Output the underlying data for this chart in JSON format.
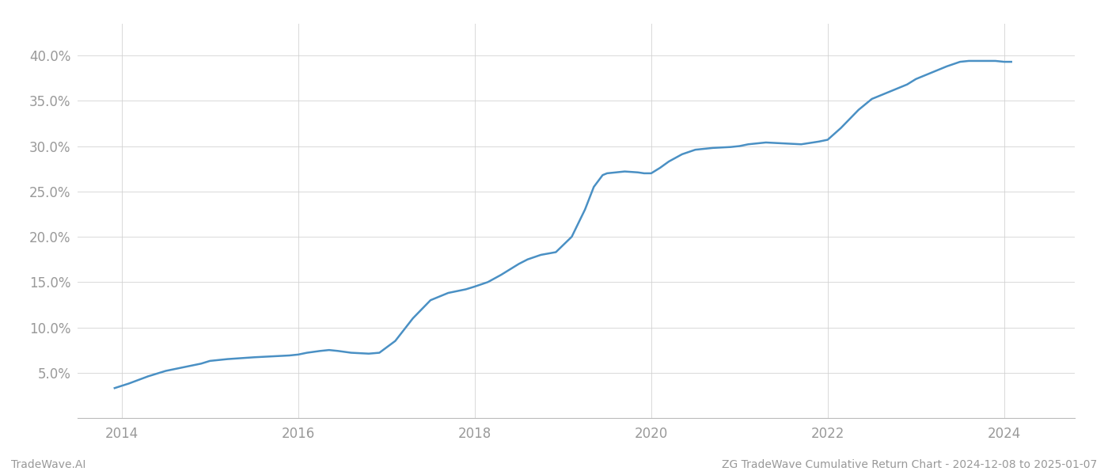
{
  "title": "",
  "footer_left": "TradeWave.AI",
  "footer_right": "ZG TradeWave Cumulative Return Chart - 2024-12-08 to 2025-01-07",
  "line_color": "#4a90c4",
  "line_width": 1.8,
  "background_color": "#ffffff",
  "grid_color": "#d0d0d0",
  "x_years": [
    2014,
    2016,
    2018,
    2020,
    2022,
    2024
  ],
  "xlim": [
    2013.5,
    2024.8
  ],
  "ylim": [
    0.0,
    0.435
  ],
  "yticks": [
    0.05,
    0.1,
    0.15,
    0.2,
    0.25,
    0.3,
    0.35,
    0.4
  ],
  "data_x": [
    2013.92,
    2014.08,
    2014.3,
    2014.5,
    2014.7,
    2014.9,
    2015.0,
    2015.2,
    2015.35,
    2015.5,
    2015.7,
    2015.9,
    2016.0,
    2016.1,
    2016.25,
    2016.35,
    2016.45,
    2016.6,
    2016.8,
    2016.92,
    2017.1,
    2017.3,
    2017.5,
    2017.7,
    2017.9,
    2018.0,
    2018.15,
    2018.3,
    2018.5,
    2018.6,
    2018.75,
    2018.92,
    2019.1,
    2019.25,
    2019.35,
    2019.45,
    2019.5,
    2019.6,
    2019.7,
    2019.85,
    2019.92,
    2020.0,
    2020.1,
    2020.2,
    2020.35,
    2020.5,
    2020.7,
    2020.9,
    2021.0,
    2021.1,
    2021.2,
    2021.3,
    2021.5,
    2021.7,
    2021.9,
    2022.0,
    2022.15,
    2022.35,
    2022.5,
    2022.7,
    2022.9,
    2023.0,
    2023.2,
    2023.35,
    2023.5,
    2023.6,
    2023.75,
    2023.9,
    2024.0,
    2024.08
  ],
  "data_y": [
    0.033,
    0.038,
    0.046,
    0.052,
    0.056,
    0.06,
    0.063,
    0.065,
    0.066,
    0.067,
    0.068,
    0.069,
    0.07,
    0.072,
    0.074,
    0.075,
    0.074,
    0.072,
    0.071,
    0.072,
    0.085,
    0.11,
    0.13,
    0.138,
    0.142,
    0.145,
    0.15,
    0.158,
    0.17,
    0.175,
    0.18,
    0.183,
    0.2,
    0.23,
    0.255,
    0.268,
    0.27,
    0.271,
    0.272,
    0.271,
    0.27,
    0.27,
    0.276,
    0.283,
    0.291,
    0.296,
    0.298,
    0.299,
    0.3,
    0.302,
    0.303,
    0.304,
    0.303,
    0.302,
    0.305,
    0.307,
    0.32,
    0.34,
    0.352,
    0.36,
    0.368,
    0.374,
    0.382,
    0.388,
    0.393,
    0.394,
    0.394,
    0.394,
    0.393,
    0.393
  ]
}
